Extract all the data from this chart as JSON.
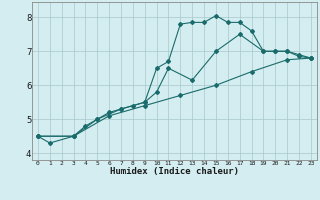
{
  "xlabel": "Humidex (Indice chaleur)",
  "bg_color": "#d4edf0",
  "grid_color": "#a8c8cc",
  "line_color": "#1a6b6b",
  "marker": "D",
  "markersize": 2.0,
  "linewidth": 0.8,
  "xlim": [
    -0.5,
    23.5
  ],
  "ylim": [
    3.8,
    8.45
  ],
  "xticks": [
    0,
    1,
    2,
    3,
    4,
    5,
    6,
    7,
    8,
    9,
    10,
    11,
    12,
    13,
    14,
    15,
    16,
    17,
    18,
    19,
    20,
    21,
    22,
    23
  ],
  "yticks": [
    4,
    5,
    6,
    7,
    8
  ],
  "lines": [
    {
      "x": [
        0,
        1,
        3,
        4,
        5,
        6,
        7,
        8,
        9,
        10,
        11,
        12,
        13,
        14,
        15,
        16,
        17,
        18,
        19,
        20,
        21,
        22,
        23
      ],
      "y": [
        4.5,
        4.3,
        4.5,
        4.8,
        5.0,
        5.2,
        5.3,
        5.4,
        5.5,
        6.5,
        6.7,
        7.8,
        7.85,
        7.85,
        8.05,
        7.85,
        7.85,
        7.6,
        7.0,
        7.0,
        7.0,
        6.85,
        6.8
      ]
    },
    {
      "x": [
        0,
        3,
        5,
        7,
        9,
        10,
        11,
        13,
        15,
        17,
        19,
        20,
        21,
        22,
        23
      ],
      "y": [
        4.5,
        4.5,
        5.0,
        5.3,
        5.5,
        5.8,
        6.5,
        6.15,
        7.0,
        7.5,
        7.0,
        7.0,
        7.0,
        6.9,
        6.8
      ]
    },
    {
      "x": [
        0,
        3,
        6,
        9,
        12,
        15,
        18,
        21,
        23
      ],
      "y": [
        4.5,
        4.5,
        5.1,
        5.4,
        5.7,
        6.0,
        6.4,
        6.75,
        6.8
      ]
    }
  ]
}
